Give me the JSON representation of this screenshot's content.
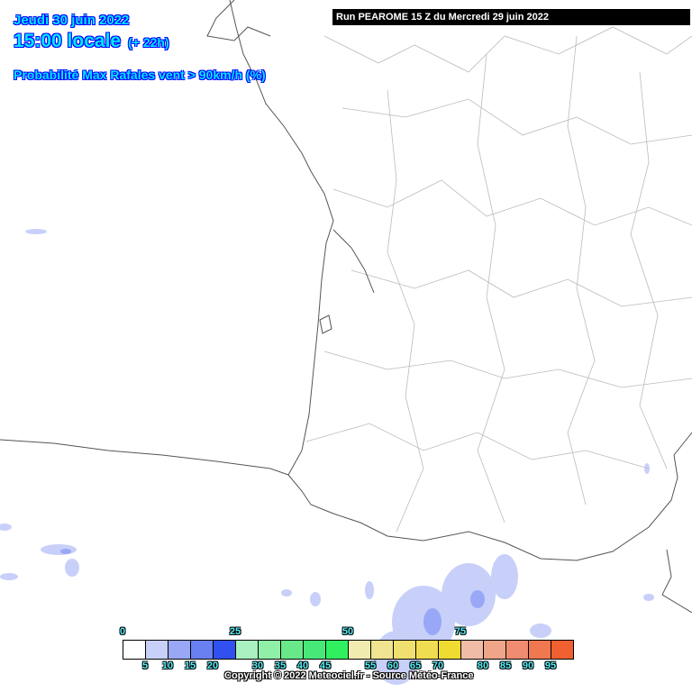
{
  "header": {
    "date": "Jeudi 30 juin 2022",
    "time": "15:00 locale",
    "lead": "(+ 22h)",
    "parameter": "Probabilité Max Rafales vent > 90km/h (%)",
    "run": "Run PEAROME 15 Z du Mercredi 29 juin 2022"
  },
  "legend": {
    "colors": [
      "#ffffff",
      "#c8d0fa",
      "#98a8f6",
      "#6880f2",
      "#3050f0",
      "#a8f0c0",
      "#90f0a8",
      "#68e888",
      "#48e878",
      "#30f060",
      "#f0ecb0",
      "#f0e490",
      "#f0e070",
      "#f0dc50",
      "#f0dc30",
      "#f0bca8",
      "#f0a488",
      "#f08c70",
      "#f07850",
      "#f06030"
    ],
    "top_labels": [
      "0",
      "25",
      "50",
      "75"
    ],
    "bottom_labels": [
      "5",
      "10",
      "15",
      "20",
      "30",
      "35",
      "40",
      "45",
      "55",
      "60",
      "65",
      "70",
      "80",
      "85",
      "90",
      "95"
    ]
  },
  "copyright": "Copyright © 2022 Meteociel.fr - Source Météo-France",
  "colors": {
    "title_fill": "#00e8ff",
    "title_outline": "#0000ff",
    "coast": "#555555",
    "borders": "#bbbbbb",
    "low_probability": "#c8d0fa"
  }
}
